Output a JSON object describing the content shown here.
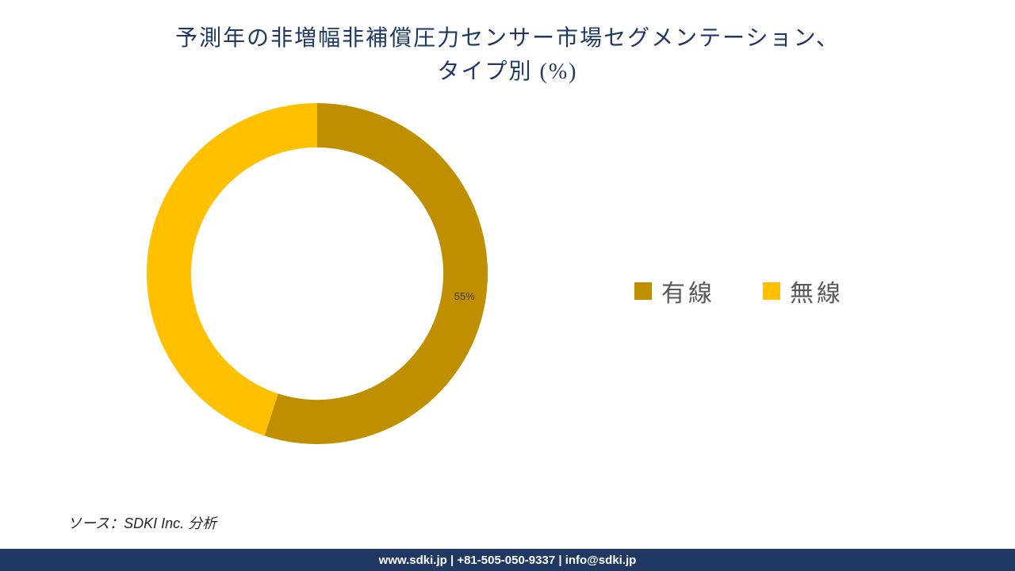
{
  "title": {
    "line1": "予測年の非増幅非補償圧力センサー市場セグメンテーション、",
    "line2": "タイプ別 (%)",
    "color": "#1f3864",
    "fontsize": 28
  },
  "chart": {
    "type": "donut",
    "outer_radius": 215,
    "inner_radius_ratio": 0.74,
    "start_angle_deg": 0,
    "background_color": "#ffffff",
    "slices": [
      {
        "label": "有線",
        "value": 55,
        "color": "#bf8f00",
        "show_pct": true,
        "pct_text": "55%",
        "pct_fontsize": 13,
        "pct_color": "#3b3b3b"
      },
      {
        "label": "無線",
        "value": 45,
        "color": "#ffc000",
        "show_pct": false
      }
    ]
  },
  "legend": {
    "fontsize": 30,
    "color": "#595959",
    "items": [
      {
        "label": "有線",
        "swatch": "#bf8f00"
      },
      {
        "label": "無線",
        "swatch": "#ffc000"
      }
    ]
  },
  "source": {
    "text": "ソース：SDKI Inc. 分析",
    "fontsize": 18,
    "color": "#262626"
  },
  "footer": {
    "text": "www.sdki.jp | +81-505-050-9337 | info@sdki.jp",
    "bg": "#1f3864",
    "color": "#ffffff",
    "fontsize": 15
  }
}
